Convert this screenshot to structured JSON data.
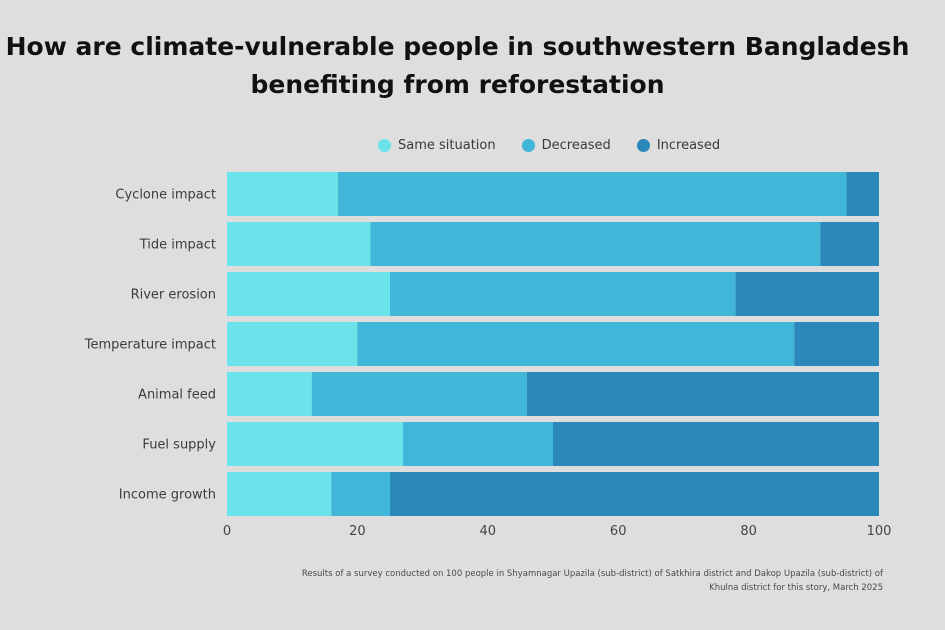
{
  "chart_data": {
    "type": "bar",
    "orientation": "horizontal",
    "stacked": true,
    "title_line1": "How are climate-vulnerable people in southwestern Bangladesh",
    "title_line2": "benefiting from reforestation",
    "categories": [
      "Cyclone impact",
      "Tide impact",
      "River erosion",
      "Temperature impact",
      "Animal feed",
      "Fuel supply",
      "Income growth"
    ],
    "series": [
      {
        "name": "Same situation",
        "color": "#6ae3ea",
        "values": [
          17,
          22,
          25,
          20,
          13,
          27,
          16
        ]
      },
      {
        "name": "Decreased",
        "color": "#40b6d8",
        "values": [
          78,
          69,
          53,
          67,
          33,
          23,
          9
        ]
      },
      {
        "name": "Increased",
        "color": "#2b88ba",
        "values": [
          5,
          9,
          22,
          13,
          54,
          50,
          75
        ]
      }
    ],
    "xlim": [
      0,
      100
    ],
    "xticks": [
      0,
      20,
      40,
      60,
      80,
      100
    ],
    "legend_position": "top",
    "grid": false,
    "footnote": "Results of a survey conducted on 100 people in Shyamnagar Upazila (sub-district) of Satkhira district and Dakop Upazila (sub-district) of Khulna district for this story, March 2025"
  }
}
